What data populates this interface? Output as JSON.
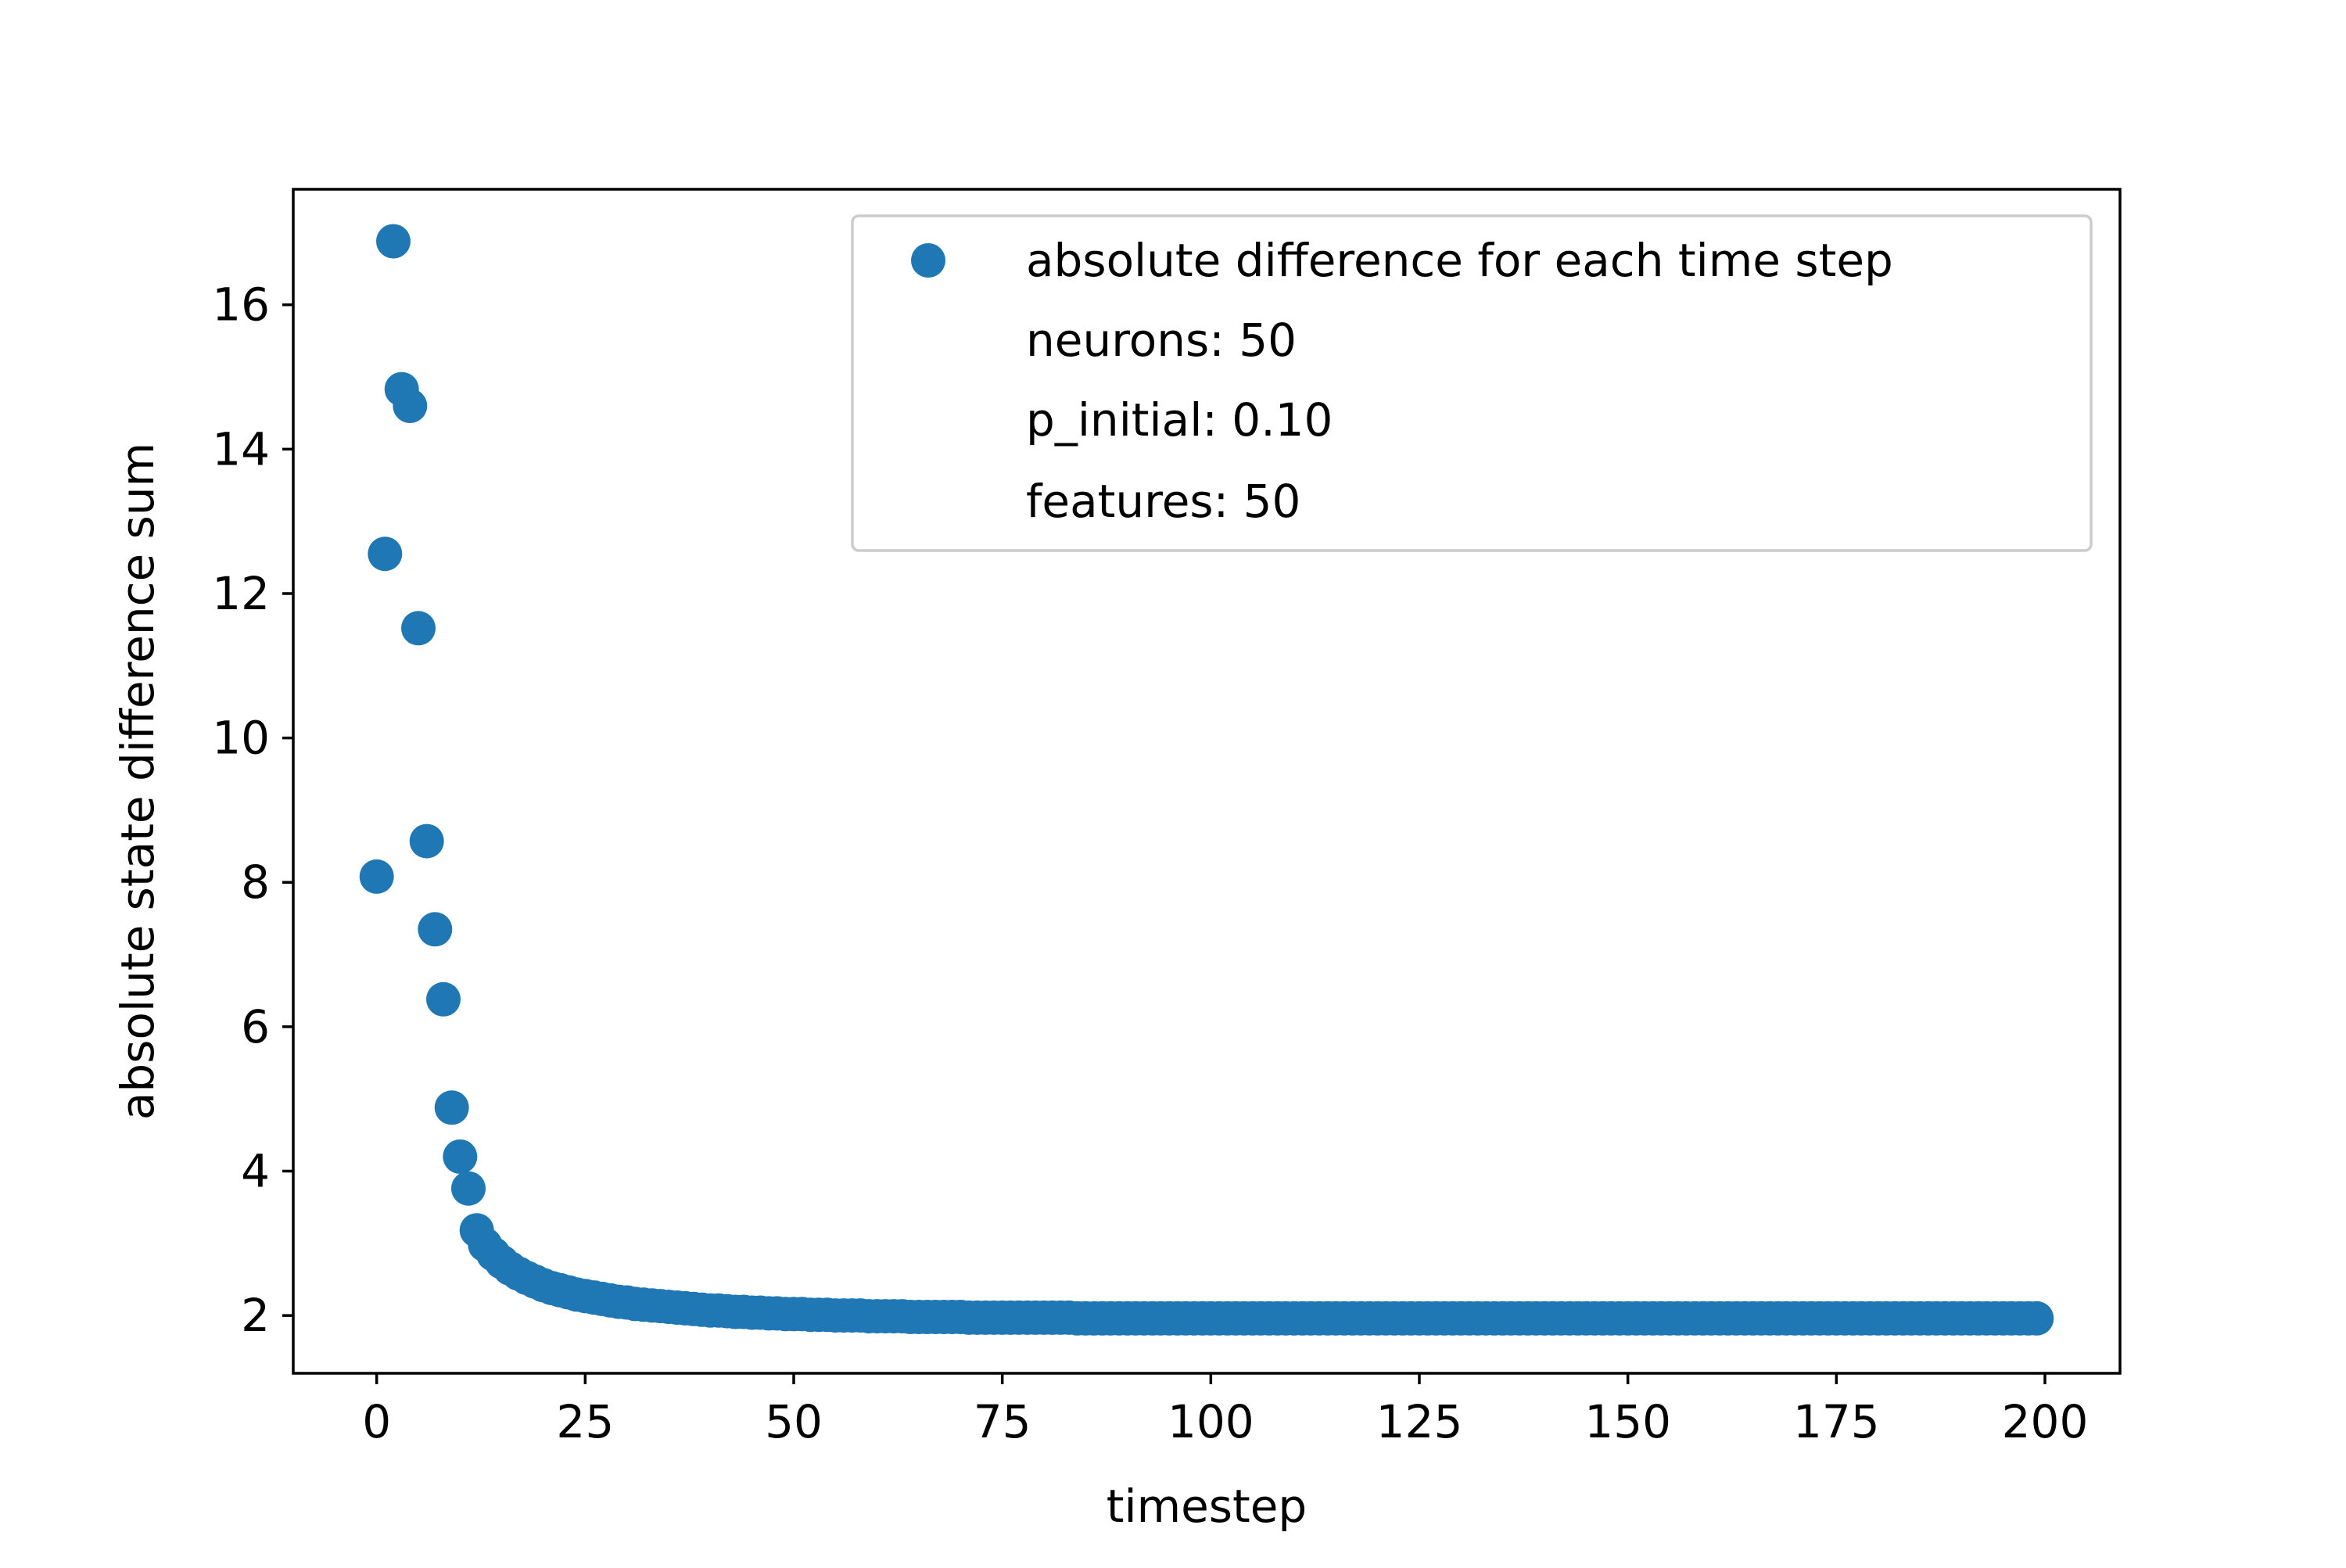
{
  "chart_data": {
    "type": "scatter",
    "xlabel": "timestep",
    "ylabel": "absolute state difference sum",
    "xlim": [
      -10,
      209
    ],
    "ylim": [
      1.2,
      17.6
    ],
    "xticks": [
      0,
      25,
      50,
      75,
      100,
      125,
      150,
      175,
      200
    ],
    "yticks": [
      2,
      4,
      6,
      8,
      10,
      12,
      14,
      16
    ],
    "grid": false,
    "legend": {
      "location": "upper right",
      "entries": [
        {
          "label": "absolute difference for each time step",
          "marker": "circle"
        },
        {
          "label": "neurons: 50",
          "marker": "none"
        },
        {
          "label": "p_initial: 0.10",
          "marker": "none"
        },
        {
          "label": "features: 50",
          "marker": "none"
        }
      ]
    },
    "series": [
      {
        "name": "absolute difference for each time step",
        "color": "#1f77b4",
        "points": [
          [
            0,
            8.08
          ],
          [
            1,
            12.55
          ],
          [
            2,
            16.88
          ],
          [
            3,
            14.83
          ],
          [
            4,
            14.6
          ],
          [
            5,
            11.52
          ],
          [
            6,
            8.57
          ],
          [
            7,
            7.35
          ],
          [
            8,
            6.38
          ],
          [
            9,
            4.88
          ],
          [
            10,
            4.2
          ],
          [
            11,
            3.76
          ],
          [
            12,
            3.18
          ],
          [
            13,
            2.98
          ],
          [
            14,
            2.85
          ],
          [
            15,
            2.74
          ],
          [
            16,
            2.65
          ],
          [
            17,
            2.58
          ],
          [
            18,
            2.52
          ],
          [
            19,
            2.47
          ],
          [
            20,
            2.42
          ],
          [
            21,
            2.38
          ],
          [
            22,
            2.35
          ],
          [
            23,
            2.32
          ],
          [
            24,
            2.29
          ],
          [
            25,
            2.27
          ],
          [
            26,
            2.25
          ],
          [
            27,
            2.23
          ],
          [
            28,
            2.21
          ],
          [
            29,
            2.19
          ],
          [
            30,
            2.18
          ],
          [
            31,
            2.16
          ],
          [
            32,
            2.15
          ],
          [
            33,
            2.14
          ],
          [
            34,
            2.13
          ],
          [
            35,
            2.12
          ],
          [
            36,
            2.11
          ],
          [
            37,
            2.1
          ],
          [
            38,
            2.09
          ],
          [
            39,
            2.08
          ],
          [
            40,
            2.07
          ],
          [
            41,
            2.07
          ],
          [
            42,
            2.06
          ],
          [
            43,
            2.05
          ],
          [
            44,
            2.05
          ],
          [
            45,
            2.04
          ],
          [
            46,
            2.04
          ],
          [
            47,
            2.03
          ],
          [
            48,
            2.03
          ],
          [
            49,
            2.02
          ],
          [
            50,
            2.02
          ],
          [
            51,
            2.02
          ],
          [
            52,
            2.01
          ],
          [
            53,
            2.01
          ],
          [
            54,
            2.01
          ],
          [
            55,
            2.0
          ],
          [
            56,
            2.0
          ],
          [
            57,
            2.0
          ],
          [
            58,
            2.0
          ],
          [
            59,
            1.99
          ],
          [
            60,
            1.99
          ],
          [
            61,
            1.99
          ],
          [
            62,
            1.99
          ],
          [
            63,
            1.99
          ],
          [
            64,
            1.98
          ],
          [
            65,
            1.98
          ],
          [
            66,
            1.98
          ],
          [
            67,
            1.98
          ],
          [
            68,
            1.98
          ],
          [
            69,
            1.98
          ],
          [
            70,
            1.98
          ],
          [
            71,
            1.97
          ],
          [
            72,
            1.97
          ],
          [
            73,
            1.97
          ],
          [
            74,
            1.97
          ],
          [
            75,
            1.97
          ],
          [
            76,
            1.97
          ],
          [
            77,
            1.97
          ],
          [
            78,
            1.97
          ],
          [
            79,
            1.97
          ],
          [
            80,
            1.97
          ],
          [
            81,
            1.97
          ],
          [
            82,
            1.97
          ],
          [
            83,
            1.97
          ],
          [
            84,
            1.96
          ],
          [
            85,
            1.96
          ],
          [
            86,
            1.96
          ],
          [
            87,
            1.96
          ],
          [
            88,
            1.96
          ],
          [
            89,
            1.96
          ],
          [
            90,
            1.96
          ],
          [
            91,
            1.96
          ],
          [
            92,
            1.96
          ],
          [
            93,
            1.96
          ],
          [
            94,
            1.96
          ],
          [
            95,
            1.96
          ],
          [
            96,
            1.96
          ],
          [
            97,
            1.96
          ],
          [
            98,
            1.96
          ],
          [
            99,
            1.96
          ],
          [
            100,
            1.96
          ],
          [
            101,
            1.96
          ],
          [
            102,
            1.96
          ],
          [
            103,
            1.96
          ],
          [
            104,
            1.96
          ],
          [
            105,
            1.96
          ],
          [
            106,
            1.96
          ],
          [
            107,
            1.96
          ],
          [
            108,
            1.96
          ],
          [
            109,
            1.96
          ],
          [
            110,
            1.96
          ],
          [
            111,
            1.96
          ],
          [
            112,
            1.96
          ],
          [
            113,
            1.96
          ],
          [
            114,
            1.96
          ],
          [
            115,
            1.96
          ],
          [
            116,
            1.96
          ],
          [
            117,
            1.96
          ],
          [
            118,
            1.96
          ],
          [
            119,
            1.96
          ],
          [
            120,
            1.96
          ],
          [
            121,
            1.96
          ],
          [
            122,
            1.96
          ],
          [
            123,
            1.96
          ],
          [
            124,
            1.96
          ],
          [
            125,
            1.96
          ],
          [
            126,
            1.96
          ],
          [
            127,
            1.96
          ],
          [
            128,
            1.96
          ],
          [
            129,
            1.96
          ],
          [
            130,
            1.96
          ],
          [
            131,
            1.96
          ],
          [
            132,
            1.96
          ],
          [
            133,
            1.96
          ],
          [
            134,
            1.96
          ],
          [
            135,
            1.96
          ],
          [
            136,
            1.96
          ],
          [
            137,
            1.96
          ],
          [
            138,
            1.96
          ],
          [
            139,
            1.96
          ],
          [
            140,
            1.96
          ],
          [
            141,
            1.96
          ],
          [
            142,
            1.96
          ],
          [
            143,
            1.96
          ],
          [
            144,
            1.96
          ],
          [
            145,
            1.96
          ],
          [
            146,
            1.96
          ],
          [
            147,
            1.96
          ],
          [
            148,
            1.96
          ],
          [
            149,
            1.96
          ],
          [
            150,
            1.96
          ],
          [
            151,
            1.96
          ],
          [
            152,
            1.96
          ],
          [
            153,
            1.96
          ],
          [
            154,
            1.96
          ],
          [
            155,
            1.96
          ],
          [
            156,
            1.96
          ],
          [
            157,
            1.96
          ],
          [
            158,
            1.96
          ],
          [
            159,
            1.96
          ],
          [
            160,
            1.96
          ],
          [
            161,
            1.96
          ],
          [
            162,
            1.96
          ],
          [
            163,
            1.96
          ],
          [
            164,
            1.96
          ],
          [
            165,
            1.96
          ],
          [
            166,
            1.96
          ],
          [
            167,
            1.96
          ],
          [
            168,
            1.96
          ],
          [
            169,
            1.96
          ],
          [
            170,
            1.96
          ],
          [
            171,
            1.96
          ],
          [
            172,
            1.96
          ],
          [
            173,
            1.96
          ],
          [
            174,
            1.96
          ],
          [
            175,
            1.96
          ],
          [
            176,
            1.96
          ],
          [
            177,
            1.96
          ],
          [
            178,
            1.96
          ],
          [
            179,
            1.96
          ],
          [
            180,
            1.96
          ],
          [
            181,
            1.96
          ],
          [
            182,
            1.96
          ],
          [
            183,
            1.96
          ],
          [
            184,
            1.96
          ],
          [
            185,
            1.96
          ],
          [
            186,
            1.96
          ],
          [
            187,
            1.96
          ],
          [
            188,
            1.96
          ],
          [
            189,
            1.96
          ],
          [
            190,
            1.96
          ],
          [
            191,
            1.96
          ],
          [
            192,
            1.96
          ],
          [
            193,
            1.96
          ],
          [
            194,
            1.96
          ],
          [
            195,
            1.96
          ],
          [
            196,
            1.96
          ],
          [
            197,
            1.96
          ],
          [
            198,
            1.96
          ],
          [
            199,
            1.96
          ]
        ]
      }
    ]
  }
}
